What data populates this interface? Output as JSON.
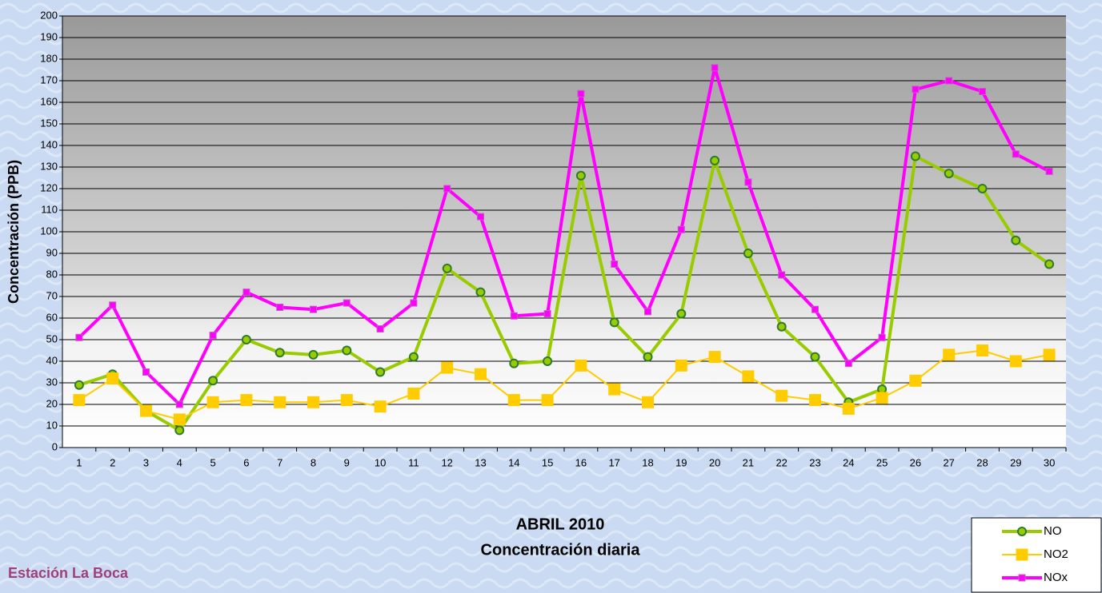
{
  "chart_data": {
    "type": "line",
    "title": "ABRIL 2010",
    "subtitle": "Concentración diaria",
    "y_label": "Concentración  (PPB)",
    "annotation": "Estación La Boca",
    "categories": [
      "1",
      "2",
      "3",
      "4",
      "5",
      "6",
      "7",
      "8",
      "9",
      "10",
      "11",
      "12",
      "13",
      "14",
      "15",
      "16",
      "17",
      "18",
      "19",
      "20",
      "21",
      "22",
      "23",
      "24",
      "25",
      "26",
      "27",
      "28",
      "29",
      "30"
    ],
    "series": [
      {
        "name": "NO",
        "color": "#99cc00",
        "marker": "circle",
        "line_width": 4,
        "values": [
          29,
          34,
          17,
          8,
          31,
          50,
          44,
          43,
          45,
          35,
          42,
          83,
          72,
          39,
          40,
          126,
          58,
          42,
          62,
          133,
          90,
          56,
          42,
          21,
          27,
          135,
          127,
          120,
          96,
          85
        ]
      },
      {
        "name": "NO2",
        "color": "#ffcc00",
        "marker": "square",
        "line_width": 2,
        "values": [
          22,
          32,
          17,
          13,
          21,
          22,
          21,
          21,
          22,
          19,
          25,
          37,
          34,
          22,
          22,
          38,
          27,
          21,
          38,
          42,
          33,
          24,
          22,
          18,
          23,
          31,
          43,
          45,
          40,
          43
        ]
      },
      {
        "name": "NOx",
        "color": "#ff00ff",
        "marker": "square-small",
        "line_width": 4,
        "values": [
          51,
          66,
          35,
          20,
          52,
          72,
          65,
          64,
          67,
          55,
          67,
          120,
          107,
          61,
          62,
          164,
          85,
          63,
          101,
          176,
          123,
          80,
          64,
          39,
          51,
          166,
          170,
          165,
          136,
          128
        ]
      }
    ],
    "ylim": [
      0,
      200
    ],
    "yticks": [
      0,
      10,
      20,
      30,
      40,
      50,
      60,
      70,
      80,
      90,
      100,
      110,
      120,
      130,
      140,
      150,
      160,
      170,
      180,
      190,
      200
    ],
    "grid": true,
    "legend": "bottom-right"
  }
}
